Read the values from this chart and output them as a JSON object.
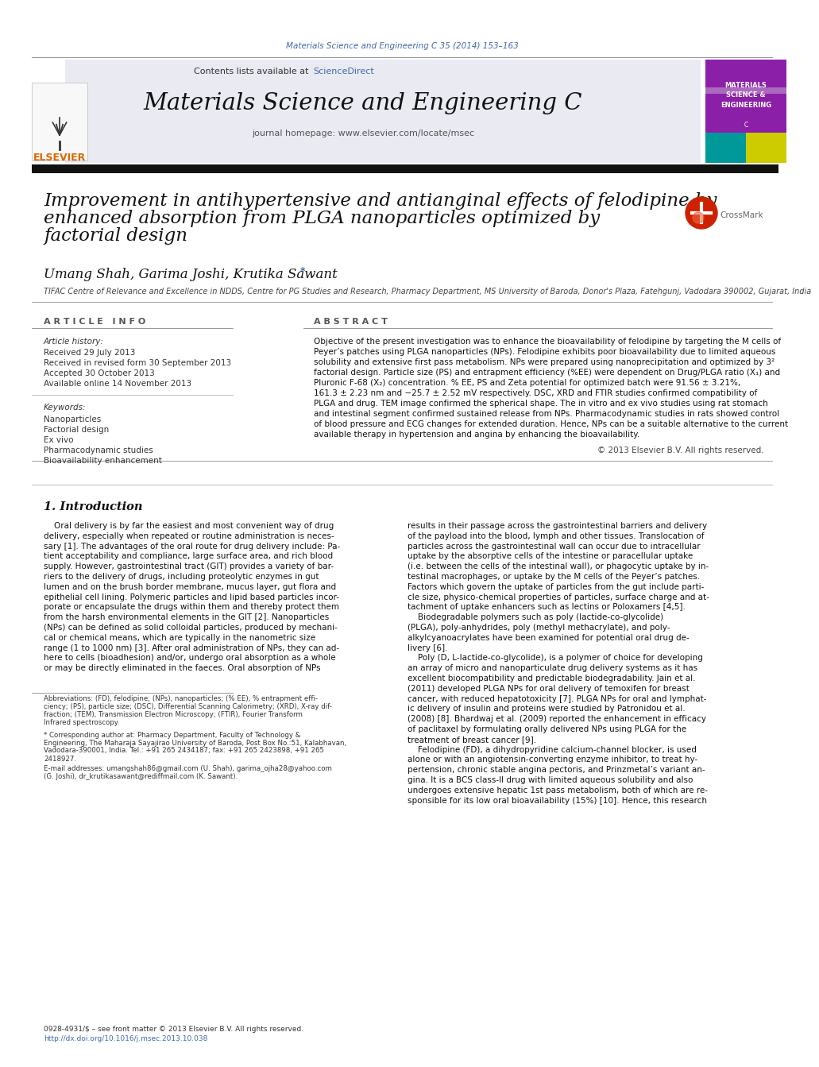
{
  "journal_ref": "Materials Science and Engineering C 35 (2014) 153–163",
  "contents_line": "Contents lists available at ScienceDirect",
  "journal_name": "Materials Science and Engineering C",
  "journal_homepage": "journal homepage: www.elsevier.com/locate/msec",
  "article_title_line1": "Improvement in antihypertensive and antianginal effects of felodipine by",
  "article_title_line2": "enhanced absorption from PLGA nanoparticles optimized by",
  "article_title_line3": "factorial design",
  "authors": "Umang Shah, Garima Joshi, Krutika Sawant",
  "affiliation": "TIFAC Centre of Relevance and Excellence in NDDS, Centre for PG Studies and Research, Pharmacy Department, MS University of Baroda, Donor's Plaza, Fatehgunj, Vadodara 390002, Gujarat, India",
  "article_info_header": "A R T I C L E   I N F O",
  "article_history_header": "Article history:",
  "received": "Received 29 July 2013",
  "revised": "Received in revised form 30 September 2013",
  "accepted": "Accepted 30 October 2013",
  "online": "Available online 14 November 2013",
  "keywords_header": "Keywords:",
  "keywords": [
    "Nanoparticles",
    "Factorial design",
    "Ex vivo",
    "Pharmacodynamic studies",
    "Bioavailability enhancement"
  ],
  "abstract_header": "A B S T R A C T",
  "abstract_lines": [
    "Objective of the present investigation was to enhance the bioavailability of felodipine by targeting the M cells of",
    "Peyer’s patches using PLGA nanoparticles (NPs). Felodipine exhibits poor bioavailability due to limited aqueous",
    "solubility and extensive first pass metabolism. NPs were prepared using nanoprecipitation and optimized by 3²",
    "factorial design. Particle size (PS) and entrapment efficiency (%EE) were dependent on Drug/PLGA ratio (X₁) and",
    "Pluronic F-68 (X₂) concentration. % EE, PS and Zeta potential for optimized batch were 91.56 ± 3.21%,",
    "161.3 ± 2.23 nm and −25.7 ± 2.52 mV respectively. DSC, XRD and FTIR studies confirmed compatibility of",
    "PLGA and drug. TEM image confirmed the spherical shape. The in vitro and ex vivo studies using rat stomach",
    "and intestinal segment confirmed sustained release from NPs. Pharmacodynamic studies in rats showed control",
    "of blood pressure and ECG changes for extended duration. Hence, NPs can be a suitable alternative to the current",
    "available therapy in hypertension and angina by enhancing the bioavailability."
  ],
  "copyright": "© 2013 Elsevier B.V. All rights reserved.",
  "intro_header": "1. Introduction",
  "col1_lines": [
    "    Oral delivery is by far the easiest and most convenient way of drug",
    "delivery, especially when repeated or routine administration is neces-",
    "sary [1]. The advantages of the oral route for drug delivery include: Pa-",
    "tient acceptability and compliance, large surface area, and rich blood",
    "supply. However, gastrointestinal tract (GIT) provides a variety of bar-",
    "riers to the delivery of drugs, including proteolytic enzymes in gut",
    "lumen and on the brush border membrane, mucus layer, gut flora and",
    "epithelial cell lining. Polymeric particles and lipid based particles incor-",
    "porate or encapsulate the drugs within them and thereby protect them",
    "from the harsh environmental elements in the GIT [2]. Nanoparticles",
    "(NPs) can be defined as solid colloidal particles, produced by mechani-",
    "cal or chemical means, which are typically in the nanometric size",
    "range (1 to 1000 nm) [3]. After oral administration of NPs, they can ad-",
    "here to cells (bioadhesion) and/or, undergo oral absorption as a whole",
    "or may be directly eliminated in the faeces. Oral absorption of NPs"
  ],
  "col2_lines": [
    "results in their passage across the gastrointestinal barriers and delivery",
    "of the payload into the blood, lymph and other tissues. Translocation of",
    "particles across the gastrointestinal wall can occur due to intracellular",
    "uptake by the absorptive cells of the intestine or paracellular uptake",
    "(i.e. between the cells of the intestinal wall), or phagocytic uptake by in-",
    "testinal macrophages, or uptake by the M cells of the Peyer’s patches.",
    "Factors which govern the uptake of particles from the gut include parti-",
    "cle size, physico-chemical properties of particles, surface charge and at-",
    "tachment of uptake enhancers such as lectins or Poloxamers [4,5].",
    "    Biodegradable polymers such as poly (lactide-co-glycolide)",
    "(PLGA), poly-anhydrides, poly (methyl methacrylate), and poly-",
    "alkylcyanoacrylates have been examined for potential oral drug de-",
    "livery [6].",
    "    Poly (D, L-lactide-co-glycolide), is a polymer of choice for developing",
    "an array of micro and nanoparticulate drug delivery systems as it has",
    "excellent biocompatibility and predictable biodegradability. Jain et al.",
    "(2011) developed PLGA NPs for oral delivery of temoxifen for breast",
    "cancer, with reduced hepatotoxicity [7]. PLGA NPs for oral and lymphat-",
    "ic delivery of insulin and proteins were studied by Patronidou et al.",
    "(2008) [8]. Bhardwaj et al. (2009) reported the enhancement in efficacy",
    "of paclitaxel by formulating orally delivered NPs using PLGA for the",
    "treatment of breast cancer [9].",
    "    Felodipine (FD), a dihydropyridine calcium-channel blocker, is used",
    "alone or with an angiotensin-converting enzyme inhibitor, to treat hy-",
    "pertension, chronic stable angina pectoris, and Prinzmetal’s variant an-",
    "gina. It is a BCS class-II drug with limited aqueous solubility and also",
    "undergoes extensive hepatic 1st pass metabolism, both of which are re-",
    "sponsible for its low oral bioavailability (15%) [10]. Hence, this research"
  ],
  "footnote1": "Abbreviations: (FD), felodipine; (NPs), nanoparticles; (% EE), % entrapment effi-",
  "footnote1b": "ciency; (PS), particle size; (DSC), Differential Scanning Calorimetry; (XRD), X-ray dif-",
  "footnote1c": "fraction; (TEM), Transmission Electron Microscopy; (FTIR), Fourier Transform",
  "footnote1d": "Infrared spectroscopy.",
  "footnote2": "* Corresponding author at: Pharmacy Department, Faculty of Technology &",
  "footnote2b": "Engineering, The Maharaja Sayajirao University of Baroda, Post Box No.:51, Kalabhavan,",
  "footnote2c": "Vadodara-390001, India. Tel.: +91 265 2434187; fax: +91 265 2423898, +91 265",
  "footnote2d": "2418927.",
  "footnote3": "E-mail addresses: umangshah86@gmail.com (U. Shah), garima_ojha28@yahoo.com",
  "footnote3b": "(G. Joshi), dr_krutikasawant@rediffmail.com (K. Sawant).",
  "issn_line": "0928-4931/$ – see front matter © 2013 Elsevier B.V. All rights reserved.",
  "doi_line": "http://dx.doi.org/10.1016/j.msec.2013.10.038",
  "bg_color": "#ffffff",
  "blue_link_color": "#4169aa",
  "elsevier_orange": "#dd6600",
  "thick_bar_color": "#111111",
  "cover_purple": "#8b1fa8",
  "cover_teal": "#009999",
  "cover_yellow": "#cccc00",
  "cover_green": "#00aa44"
}
